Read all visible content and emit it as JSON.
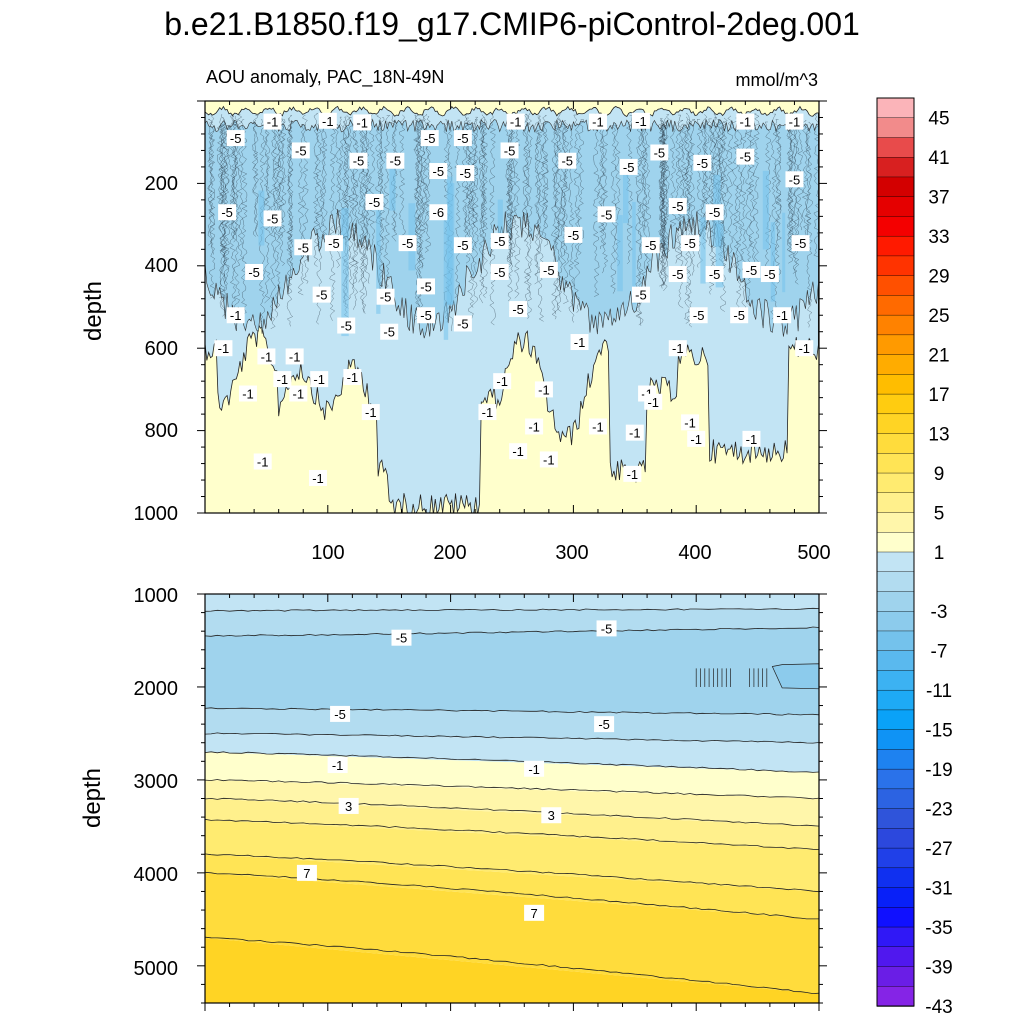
{
  "page_title": "b.e21.B1850.f19_g17.CMIP6-piControl-2deg.001",
  "colorbar": {
    "labels": [
      "45",
      "41",
      "37",
      "33",
      "29",
      "25",
      "21",
      "17",
      "13",
      "9",
      "5",
      "1",
      "-3",
      "-7",
      "-11",
      "-15",
      "-19",
      "-23",
      "-27",
      "-31",
      "-35",
      "-39",
      "-43"
    ],
    "colors": [
      "#fbb4b9",
      "#f28b8b",
      "#e84b4b",
      "#d82020",
      "#d30000",
      "#e50000",
      "#f40000",
      "#ff1a00",
      "#ff3300",
      "#ff5000",
      "#ff6a00",
      "#ff8200",
      "#ff9a00",
      "#ffac00",
      "#ffbd00",
      "#ffcc10",
      "#ffd424",
      "#ffdc3c",
      "#ffe455",
      "#ffeb70",
      "#fff08c",
      "#fff6aa",
      "#ffffcc",
      "#c2e4f4",
      "#b2dcf0",
      "#9fd3ed",
      "#8ccbec",
      "#74c2ec",
      "#5ab9ee",
      "#3cb2f2",
      "#1eaaf5",
      "#0aa2f8",
      "#0f93f5",
      "#1e82f0",
      "#2a72ea",
      "#2c63e2",
      "#2f54da",
      "#2c48dd",
      "#2040e8",
      "#1030f0",
      "#0820f8",
      "#1010ff",
      "#3018f6",
      "#5018ee",
      "#6a1ee6",
      "#8524e6"
    ]
  },
  "chart_data": [
    {
      "type": "contour",
      "panel": "upper",
      "left_title": "AOU anomaly, PAC_18N-49N",
      "right_title": "mmol/m^3",
      "ylabel": "depth",
      "xlim": [
        0,
        500
      ],
      "ylim": [
        1000,
        0
      ],
      "x_tick_labels": [
        "100",
        "200",
        "300",
        "400",
        "500"
      ],
      "y_tick_labels": [
        "200",
        "400",
        "600",
        "800",
        "1000"
      ],
      "contour_labels": [
        {
          "text": "-5",
          "x": 25,
          "y": 90
        },
        {
          "text": "-1",
          "x": 55,
          "y": 50
        },
        {
          "text": "-1",
          "x": 100,
          "y": 48
        },
        {
          "text": "-1",
          "x": 128,
          "y": 52
        },
        {
          "text": "-5",
          "x": 78,
          "y": 120
        },
        {
          "text": "-5",
          "x": 125,
          "y": 145
        },
        {
          "text": "-5",
          "x": 155,
          "y": 145
        },
        {
          "text": "-5",
          "x": 183,
          "y": 90
        },
        {
          "text": "-5",
          "x": 210,
          "y": 90
        },
        {
          "text": "-5",
          "x": 248,
          "y": 120
        },
        {
          "text": "-1",
          "x": 253,
          "y": 50
        },
        {
          "text": "-1",
          "x": 320,
          "y": 50
        },
        {
          "text": "-1",
          "x": 355,
          "y": 48
        },
        {
          "text": "-1",
          "x": 440,
          "y": 50
        },
        {
          "text": "-1",
          "x": 480,
          "y": 50
        },
        {
          "text": "-5",
          "x": 295,
          "y": 145
        },
        {
          "text": "-5",
          "x": 345,
          "y": 160
        },
        {
          "text": "-5",
          "x": 370,
          "y": 125
        },
        {
          "text": "-5",
          "x": 405,
          "y": 150
        },
        {
          "text": "-5",
          "x": 440,
          "y": 135
        },
        {
          "text": "-5",
          "x": 480,
          "y": 190
        },
        {
          "text": "-5",
          "x": 18,
          "y": 270
        },
        {
          "text": "-5",
          "x": 55,
          "y": 285
        },
        {
          "text": "-5",
          "x": 190,
          "y": 170
        },
        {
          "text": "-5",
          "x": 212,
          "y": 175
        },
        {
          "text": "-5",
          "x": 138,
          "y": 245
        },
        {
          "text": "-6",
          "x": 190,
          "y": 270
        },
        {
          "text": "-5",
          "x": 327,
          "y": 275
        },
        {
          "text": "-5",
          "x": 385,
          "y": 255
        },
        {
          "text": "-5",
          "x": 415,
          "y": 270
        },
        {
          "text": "-5",
          "x": 80,
          "y": 355
        },
        {
          "text": "-5",
          "x": 105,
          "y": 345
        },
        {
          "text": "-5",
          "x": 165,
          "y": 345
        },
        {
          "text": "-5",
          "x": 210,
          "y": 350
        },
        {
          "text": "-5",
          "x": 240,
          "y": 340
        },
        {
          "text": "-5",
          "x": 300,
          "y": 325
        },
        {
          "text": "-5",
          "x": 363,
          "y": 350
        },
        {
          "text": "-5",
          "x": 395,
          "y": 345
        },
        {
          "text": "-5",
          "x": 485,
          "y": 345
        },
        {
          "text": "-5",
          "x": 40,
          "y": 415
        },
        {
          "text": "-5",
          "x": 240,
          "y": 415
        },
        {
          "text": "-5",
          "x": 280,
          "y": 410
        },
        {
          "text": "-5",
          "x": 415,
          "y": 420
        },
        {
          "text": "-5",
          "x": 445,
          "y": 410
        },
        {
          "text": "-5",
          "x": 180,
          "y": 450
        },
        {
          "text": "-5",
          "x": 95,
          "y": 470
        },
        {
          "text": "-5",
          "x": 147,
          "y": 475
        },
        {
          "text": "-5",
          "x": 355,
          "y": 470
        },
        {
          "text": "-5",
          "x": 385,
          "y": 420
        },
        {
          "text": "-5",
          "x": 460,
          "y": 420
        },
        {
          "text": "-5",
          "x": 180,
          "y": 520
        },
        {
          "text": "-5",
          "x": 115,
          "y": 545
        },
        {
          "text": "-5",
          "x": 210,
          "y": 540
        },
        {
          "text": "-5",
          "x": 255,
          "y": 505
        },
        {
          "text": "-5",
          "x": 150,
          "y": 560
        },
        {
          "text": "-5",
          "x": 402,
          "y": 520
        },
        {
          "text": "-5",
          "x": 435,
          "y": 520
        },
        {
          "text": "-1",
          "x": 25,
          "y": 520
        },
        {
          "text": "-1",
          "x": 470,
          "y": 520
        },
        {
          "text": "-1",
          "x": 15,
          "y": 600
        },
        {
          "text": "-1",
          "x": 50,
          "y": 620
        },
        {
          "text": "-1",
          "x": 73,
          "y": 620
        },
        {
          "text": "-1",
          "x": 305,
          "y": 585
        },
        {
          "text": "-1",
          "x": 385,
          "y": 600
        },
        {
          "text": "-1",
          "x": 488,
          "y": 600
        },
        {
          "text": "-1",
          "x": 63,
          "y": 675
        },
        {
          "text": "-1",
          "x": 93,
          "y": 675
        },
        {
          "text": "-1",
          "x": 120,
          "y": 670
        },
        {
          "text": "-1",
          "x": 35,
          "y": 710
        },
        {
          "text": "-1",
          "x": 76,
          "y": 710
        },
        {
          "text": "-1",
          "x": 242,
          "y": 680
        },
        {
          "text": "-1",
          "x": 276,
          "y": 700
        },
        {
          "text": "-1",
          "x": 360,
          "y": 710
        },
        {
          "text": "-1",
          "x": 365,
          "y": 730
        },
        {
          "text": "-1",
          "x": 135,
          "y": 755
        },
        {
          "text": "-1",
          "x": 230,
          "y": 755
        },
        {
          "text": "-1",
          "x": 268,
          "y": 790
        },
        {
          "text": "-1",
          "x": 320,
          "y": 790
        },
        {
          "text": "-1",
          "x": 350,
          "y": 805
        },
        {
          "text": "-1",
          "x": 395,
          "y": 780
        },
        {
          "text": "-1",
          "x": 445,
          "y": 820
        },
        {
          "text": "-1",
          "x": 400,
          "y": 820
        },
        {
          "text": "-1",
          "x": 255,
          "y": 850
        },
        {
          "text": "-1",
          "x": 280,
          "y": 870
        },
        {
          "text": "-1",
          "x": 47,
          "y": 875
        },
        {
          "text": "-1",
          "x": 92,
          "y": 915
        },
        {
          "text": "-1",
          "x": 348,
          "y": 905
        }
      ]
    },
    {
      "type": "contour",
      "panel": "lower",
      "ylabel": "depth",
      "xlim": [
        0,
        500
      ],
      "ylim": [
        5400,
        1000
      ],
      "y_tick_labels": [
        "1000",
        "2000",
        "3000",
        "4000",
        "5000"
      ],
      "contour_labels": [
        {
          "text": "-5",
          "x": 160,
          "y": 1470
        },
        {
          "text": "-5",
          "x": 327,
          "y": 1370
        },
        {
          "text": "-5",
          "x": 110,
          "y": 2290
        },
        {
          "text": "-5",
          "x": 325,
          "y": 2400
        },
        {
          "text": "-1",
          "x": 108,
          "y": 2840
        },
        {
          "text": "-1",
          "x": 268,
          "y": 2880
        },
        {
          "text": "3",
          "x": 117,
          "y": 3280
        },
        {
          "text": "3",
          "x": 282,
          "y": 3380
        },
        {
          "text": "7",
          "x": 83,
          "y": 4000
        },
        {
          "text": "7",
          "x": 268,
          "y": 4430
        }
      ]
    }
  ]
}
